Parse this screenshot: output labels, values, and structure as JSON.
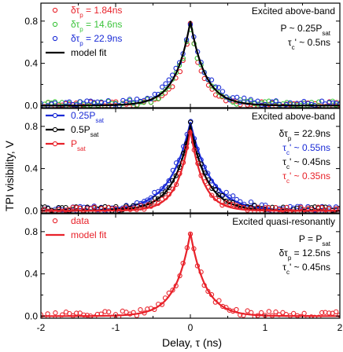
{
  "chart_data": {
    "type": "scatter",
    "ylabel": "TPI visibility, V",
    "xlabel": "Delay, τ (ns)",
    "xlim": [
      -2,
      2
    ],
    "xticks": [
      "-2",
      "-1",
      "0",
      "1",
      "2"
    ],
    "panels": [
      {
        "ylim": [
          -0.02,
          0.97
        ],
        "yticks": [
          "0.0",
          "0.4",
          "0.8"
        ],
        "legend_position": "top-left",
        "annotation_position": "top-right",
        "legend": [
          {
            "kind": "marker",
            "color": "#e8222a",
            "text": "δτ",
            "sub": "p",
            "rest": " = 1.84ns"
          },
          {
            "kind": "marker",
            "color": "#3cc43c",
            "text": "δτ",
            "sub": "p",
            "rest": " = 14.6ns"
          },
          {
            "kind": "marker",
            "color": "#1a2bd6",
            "text": "δτ",
            "sub": "p",
            "rest": " = 22.9ns"
          },
          {
            "kind": "line",
            "color": "#000000",
            "text": "model fit",
            "sub": "",
            "rest": ""
          }
        ],
        "annotations": [
          {
            "text": "Excited above-band",
            "sub": "",
            "rest": "",
            "color": "#000000"
          },
          {
            "text": "P ~ 0.25P",
            "sub": "sat",
            "rest": "",
            "color": "#000000"
          },
          {
            "text": "τ",
            "sub": "c",
            "rest": "' ~ 0.5ns",
            "color": "#000000"
          }
        ],
        "series": [
          {
            "name": "δτp = 1.84ns",
            "kind": "markers",
            "color": "#e8222a",
            "peak": 0.75,
            "tau": 0.17,
            "noise": 0.025,
            "seed": 11
          },
          {
            "name": "δτp = 14.6ns",
            "kind": "markers",
            "color": "#3cc43c",
            "peak": 0.74,
            "tau": 0.19,
            "noise": 0.03,
            "seed": 23
          },
          {
            "name": "δτp = 22.9ns",
            "kind": "markers",
            "color": "#1a2bd6",
            "peak": 0.76,
            "tau": 0.22,
            "noise": 0.03,
            "seed": 37
          },
          {
            "name": "model fit",
            "kind": "line",
            "color": "#000000",
            "peak": 0.8,
            "tau": 0.2
          }
        ]
      },
      {
        "ylim": [
          -0.02,
          0.97
        ],
        "yticks": [
          "0.0",
          "0.4",
          "0.8"
        ],
        "legend_position": "top-left",
        "annotation_position": "top-right",
        "legend": [
          {
            "kind": "line-marker",
            "color": "#1a2bd6",
            "text": "0.25P",
            "sub": "sat",
            "rest": ""
          },
          {
            "kind": "line-marker",
            "color": "#000000",
            "text": "0.5P",
            "sub": "sat",
            "rest": ""
          },
          {
            "kind": "line-marker",
            "color": "#e8222a",
            "text": "P",
            "sub": "sat",
            "rest": ""
          }
        ],
        "annotations": [
          {
            "text": "Excited above-band",
            "sub": "",
            "rest": "",
            "color": "#000000"
          },
          {
            "text": "δτ",
            "sub": "p",
            "rest": " = 22.9ns",
            "color": "#000000"
          },
          {
            "text": "τ",
            "sub": "c",
            "rest": "' ~ 0.55ns",
            "color": "#1a2bd6"
          },
          {
            "text": "τ",
            "sub": "c",
            "rest": "' ~ 0.45ns",
            "color": "#000000"
          },
          {
            "text": "τ",
            "sub": "c",
            "rest": "' ~ 0.35ns",
            "color": "#e8222a"
          }
        ],
        "series": [
          {
            "name": "0.25Psat",
            "kind": "markers+line",
            "color": "#1a2bd6",
            "peak": 0.84,
            "tau": 0.27,
            "noise": 0.03,
            "seed": 51
          },
          {
            "name": "0.5Psat",
            "kind": "markers+line",
            "color": "#000000",
            "peak": 0.81,
            "tau": 0.22,
            "noise": 0.025,
            "seed": 63
          },
          {
            "name": "Psat",
            "kind": "markers+line",
            "color": "#e8222a",
            "peak": 0.77,
            "tau": 0.17,
            "noise": 0.025,
            "seed": 77
          }
        ]
      },
      {
        "ylim": [
          -0.02,
          0.97
        ],
        "yticks": [
          "0.0",
          "0.4",
          "0.8"
        ],
        "legend_position": "top-left",
        "annotation_position": "top-right",
        "legend": [
          {
            "kind": "marker",
            "color": "#e8222a",
            "text": "data",
            "sub": "",
            "rest": ""
          },
          {
            "kind": "line",
            "color": "#e8222a",
            "text": "model fit",
            "sub": "",
            "rest": ""
          }
        ],
        "annotations": [
          {
            "text": "Excited quasi-resonantly",
            "sub": "",
            "rest": "",
            "color": "#000000"
          },
          {
            "text": "P = P",
            "sub": "sat",
            "rest": "",
            "color": "#000000"
          },
          {
            "text": "δτ",
            "sub": "p",
            "rest": " = 12.5ns",
            "color": "#000000"
          },
          {
            "text": "τ",
            "sub": "c",
            "rest": "' ~ 0.45ns",
            "color": "#000000"
          }
        ],
        "series": [
          {
            "name": "data",
            "kind": "markers",
            "color": "#e8222a",
            "peak": 0.78,
            "tau": 0.2,
            "noise": 0.03,
            "seed": 91
          },
          {
            "name": "model fit",
            "kind": "line",
            "color": "#e8222a",
            "peak": 0.79,
            "tau": 0.2
          }
        ]
      }
    ]
  }
}
